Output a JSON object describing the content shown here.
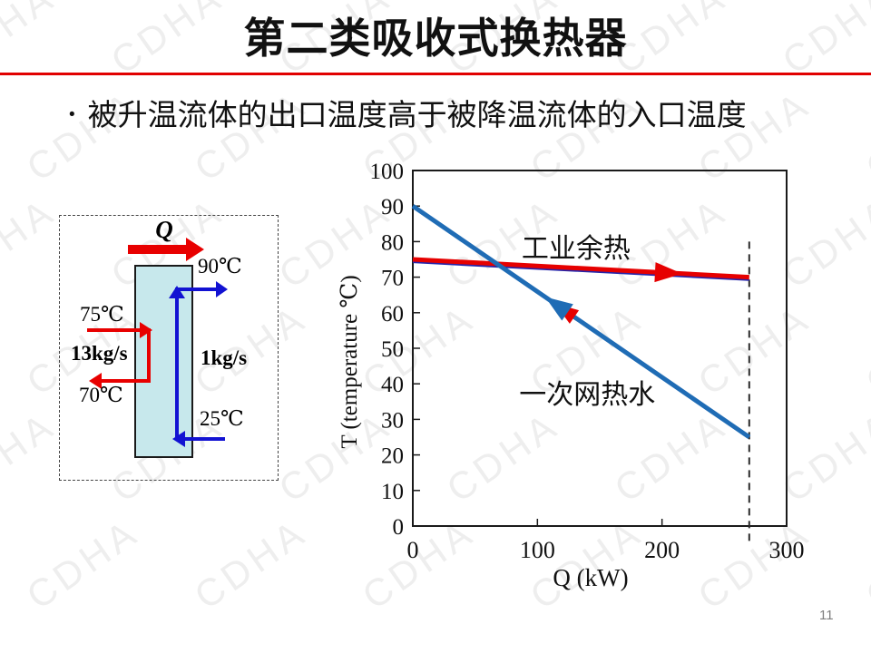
{
  "slide": {
    "title": "第二类吸收式换热器",
    "bullet_marker": "•",
    "bullet": "被升温流体的出口温度高于被降温流体的入口温度",
    "page_number": "11",
    "watermark": "CDHA",
    "accent_color": "#e10000"
  },
  "diagram": {
    "q_label": "Q",
    "hot_in_temp": "75℃",
    "hot_out_temp": "70℃",
    "hot_flow": "13kg/s",
    "cold_in_temp": "25℃",
    "cold_out_temp": "90℃",
    "cold_flow": "1kg/s",
    "colors": {
      "hot": "#e80000",
      "cold": "#1212d2",
      "vessel_fill": "#c7e8ec"
    }
  },
  "chart_data": {
    "type": "line",
    "xlabel": "Q (kW)",
    "ylabel": "T  (temperature ℃)",
    "xlim": [
      0,
      300
    ],
    "ylim": [
      0,
      100
    ],
    "xticks": [
      0,
      100,
      200,
      300
    ],
    "ytick_step": 10,
    "grid": false,
    "series": [
      {
        "name": "工业余热",
        "x": [
          0,
          270
        ],
        "y": [
          75,
          70
        ],
        "color": "#e60000",
        "width": 5,
        "arrow": {
          "frac": 0.72,
          "dir": "forward"
        }
      },
      {
        "name": "一次网热水",
        "x": [
          0,
          270
        ],
        "y": [
          90,
          25
        ],
        "color": "#1f6cb5",
        "width": 5,
        "arrow": {
          "frac": 0.46,
          "dir": "backward",
          "accent": "#e60000"
        }
      }
    ],
    "underlay_line": {
      "x": [
        0,
        270
      ],
      "y": [
        74.2,
        69.2
      ],
      "color": "#2424aa",
      "width": 2
    },
    "dashed_line": {
      "x": 270,
      "y_top": 80
    },
    "annotations": [
      {
        "text": "工业余热",
        "x": 131,
        "y": 78
      },
      {
        "text": "一次网热水",
        "x": 140,
        "y": 37
      }
    ]
  }
}
